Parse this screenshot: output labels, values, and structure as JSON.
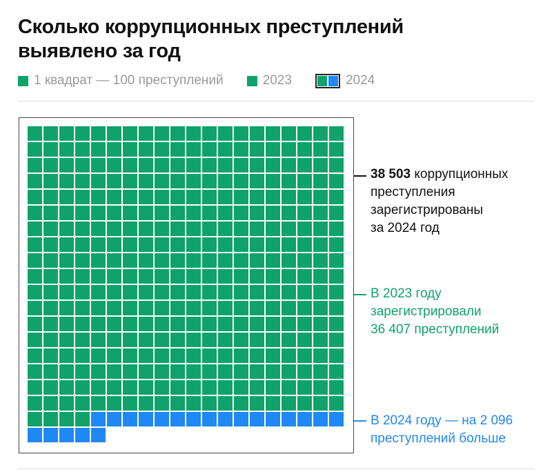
{
  "title": "Сколько коррупционных преступлений выявлено за год",
  "legend": {
    "unit": "1 квадрат — 100 преступлений",
    "y2023": "2023",
    "y2024": "2024"
  },
  "colors": {
    "c2023": "#0fa36b",
    "c2024": "#1f88f4",
    "text": "#111111"
  },
  "chart_data": {
    "type": "waffle",
    "unit": 100,
    "columns": 20,
    "series": [
      {
        "name": "2023",
        "value": 36407
      },
      {
        "name": "2024",
        "value": 38503
      }
    ],
    "difference": 2096
  },
  "annotations": {
    "total_bold": "38 503",
    "total_rest": " коррупционных",
    "total_lines": [
      "преступления",
      "зарегистрированы",
      "за 2024 год"
    ],
    "y2023_lines": [
      "В 2023 году",
      "зарегистрировали",
      "36 407 преступлений"
    ],
    "y2024_lines": [
      "В 2024 году — на 2 096",
      "преступлений больше"
    ]
  }
}
